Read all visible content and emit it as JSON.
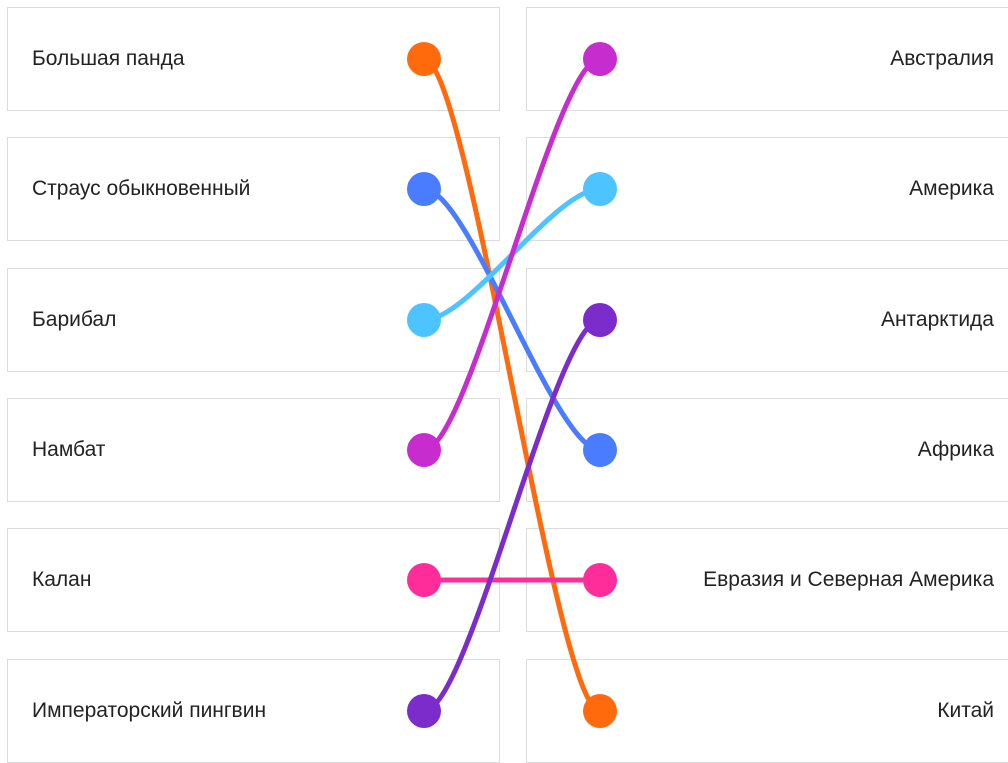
{
  "left_items": [
    {
      "label": "Большая панда",
      "color": "#ff6a0d"
    },
    {
      "label": "Страус обыкновенный",
      "color": "#4a7cff"
    },
    {
      "label": "Барибал",
      "color": "#4dc3ff"
    },
    {
      "label": "Намбат",
      "color": "#c72ccf"
    },
    {
      "label": "Калан",
      "color": "#ff2d9a"
    },
    {
      "label": "Императорский пингвин",
      "color": "#7b2ccb"
    }
  ],
  "right_items": [
    {
      "label": "Австралия",
      "color": "#c72ccf"
    },
    {
      "label": "Америка",
      "color": "#4dc3ff"
    },
    {
      "label": "Антарктида",
      "color": "#7b2ccb"
    },
    {
      "label": "Африка",
      "color": "#4a7cff"
    },
    {
      "label": "Евразия и Северная Америка",
      "color": "#ff2d9a"
    },
    {
      "label": "Китай",
      "color": "#ff6a0d"
    }
  ],
  "connections": [
    {
      "left": 0,
      "right": 5
    },
    {
      "left": 1,
      "right": 3
    },
    {
      "left": 2,
      "right": 1
    },
    {
      "left": 3,
      "right": 0
    },
    {
      "left": 4,
      "right": 4
    },
    {
      "left": 5,
      "right": 2
    }
  ]
}
